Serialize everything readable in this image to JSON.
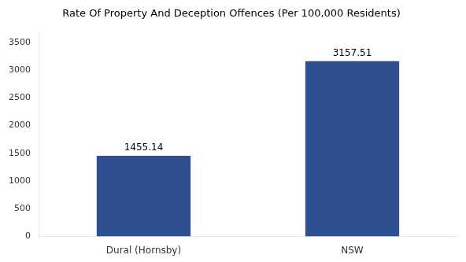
{
  "chart_data": {
    "type": "bar",
    "title": "Rate Of Property And Deception Offences (Per 100,000 Residents)",
    "categories": [
      "Dural (Hornsby)",
      "NSW"
    ],
    "values": [
      1455.14,
      3157.51
    ],
    "color": "#2e5090",
    "ylim": [
      0,
      3700
    ],
    "yticks": [
      0,
      500,
      1000,
      1500,
      2000,
      2500,
      3000,
      3500
    ],
    "grid": false,
    "data_labels": true
  }
}
